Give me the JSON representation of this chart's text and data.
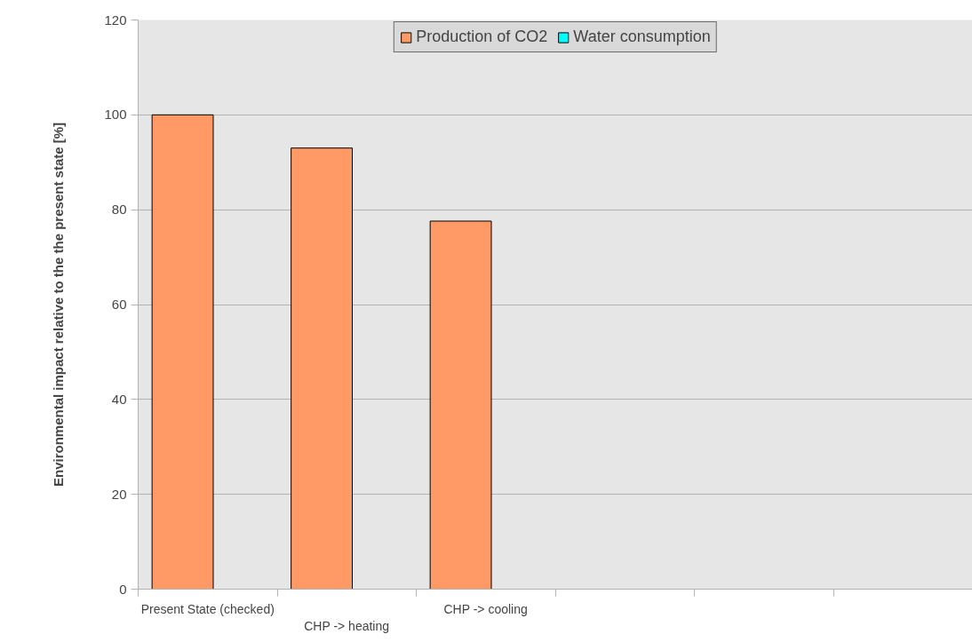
{
  "chart_data": {
    "type": "bar",
    "ylabel": "Environmental impact relative to the the present state [%]",
    "categories": [
      "Present State (checked)",
      "CHP -> heating",
      "CHP -> cooling",
      null,
      null,
      null
    ],
    "series": [
      {
        "name": "Production of CO2",
        "color": "#ff9966",
        "values": [
          100,
          93,
          77.6,
          null,
          null,
          null
        ]
      },
      {
        "name": "Water consumption",
        "color": "#00ffff",
        "values": [
          null,
          null,
          null,
          null,
          null,
          null
        ]
      }
    ],
    "ylim": [
      0,
      120
    ],
    "yticks": [
      0,
      20,
      40,
      60,
      80,
      100,
      120
    ],
    "grid": "y",
    "legend": "top"
  }
}
